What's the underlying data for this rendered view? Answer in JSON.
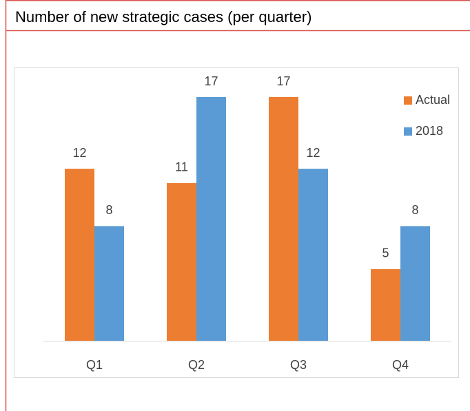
{
  "chart_data": {
    "type": "bar",
    "title": "Number of new strategic cases (per quarter)",
    "categories": [
      "Q1",
      "Q2",
      "Q3",
      "Q4"
    ],
    "series": [
      {
        "name": "Actual",
        "color": "#ed7d31",
        "values": [
          12,
          11,
          17,
          5
        ]
      },
      {
        "name": "2018",
        "color": "#5b9bd5",
        "values": [
          8,
          17,
          12,
          8
        ]
      }
    ],
    "legend": "top-right"
  }
}
